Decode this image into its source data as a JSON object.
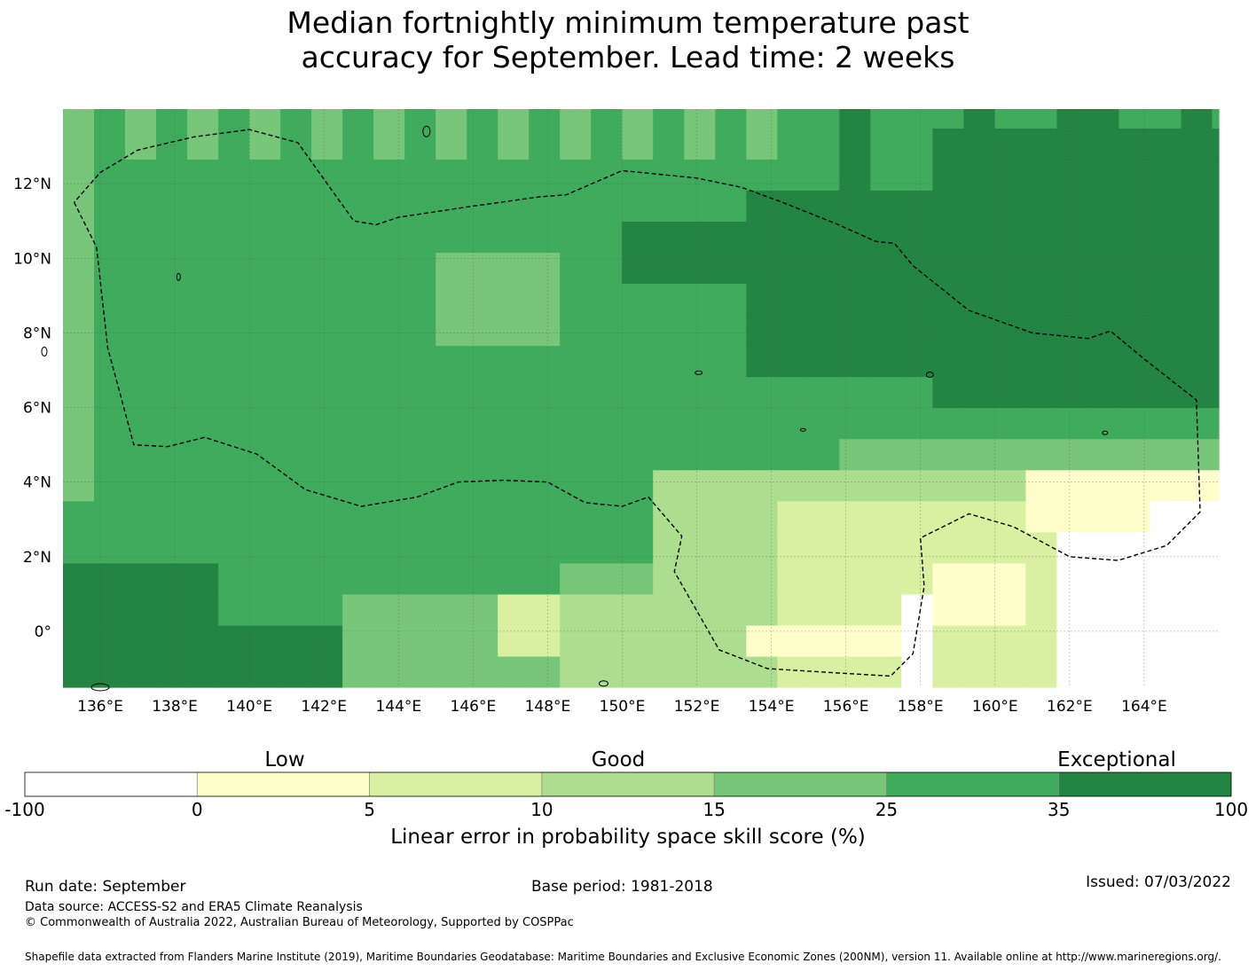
{
  "title_line1": "Median fortnightly minimum temperature past",
  "title_line2": "accuracy for September. Lead time: 2 weeks",
  "map": {
    "lon_labels": [
      "136°E",
      "138°E",
      "140°E",
      "142°E",
      "144°E",
      "146°E",
      "148°E",
      "150°E",
      "152°E",
      "154°E",
      "156°E",
      "158°E",
      "160°E",
      "162°E",
      "164°E"
    ],
    "lat_labels": [
      "12°N",
      "10°N",
      "8°N",
      "6°N",
      "4°N",
      "2°N",
      "0°"
    ],
    "lon_range": [
      135.0,
      166.0
    ],
    "lat_range": [
      -1.5,
      14.0
    ],
    "grid_resolution_deg": 0.833
  },
  "colorbar": {
    "category_labels": [
      "Low",
      "Good",
      "Exceptional"
    ],
    "tick_labels": [
      "-100",
      "0",
      "5",
      "10",
      "15",
      "25",
      "35",
      "100"
    ],
    "colors": [
      "#ffffff",
      "#ffffcc",
      "#d9f0a3",
      "#addd8e",
      "#78c679",
      "#41ab5d",
      "#238443"
    ],
    "title": "Linear error in probability space skill score (%)"
  },
  "footer": {
    "run_date": "Run date: September",
    "base_period": "Base period: 1981-2018",
    "issued": "Issued: 07/03/2022",
    "data_source": "Data source: ACCESS-S2 and ERA5 Climate Reanalysis",
    "copyright": "© Commonwealth of Australia 2022, Australian Bureau of Meteorology, Supported by COSPPac",
    "shapefile": "Shapefile data extracted from Flanders Marine Institute (2019), Maritime Boundaries Geodatabase: Maritime Boundaries and Exclusive Economic Zones (200NM), version 11. Available online at http://www.marineregions.org/."
  }
}
